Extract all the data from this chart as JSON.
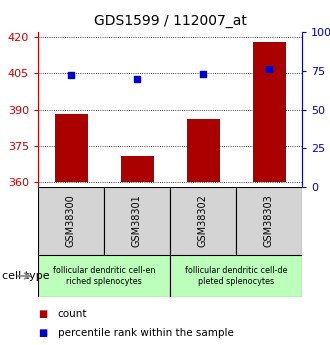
{
  "title": "GDS1599 / 112007_at",
  "samples": [
    "GSM38300",
    "GSM38301",
    "GSM38302",
    "GSM38303"
  ],
  "counts": [
    388,
    371,
    386,
    418
  ],
  "percentiles": [
    72,
    70,
    73,
    76
  ],
  "ylim_left": [
    358,
    422
  ],
  "ylim_right": [
    0,
    100
  ],
  "yticks_left": [
    360,
    375,
    390,
    405,
    420
  ],
  "yticks_right": [
    0,
    25,
    50,
    75,
    100
  ],
  "baseline": 360,
  "bar_color": "#aa0000",
  "dot_color": "#0000cc",
  "left_tick_color": "#cc0000",
  "right_tick_color": "#0000cc",
  "cell_types": [
    {
      "label": "follicular dendritic cell-en\nriched splenocytes",
      "color": "#bbffbb"
    },
    {
      "label": "follicular dendritic cell-de\npleted splenocytes",
      "color": "#bbffbb"
    }
  ],
  "legend_count_label": "count",
  "legend_percentile_label": "percentile rank within the sample",
  "cell_type_label": "cell type",
  "sample_box_color": "#d4d4d4",
  "bar_width": 0.5
}
